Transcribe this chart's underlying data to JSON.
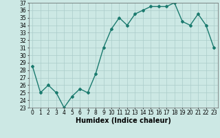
{
  "x": [
    0,
    1,
    2,
    3,
    4,
    5,
    6,
    7,
    8,
    9,
    10,
    11,
    12,
    13,
    14,
    15,
    16,
    17,
    18,
    19,
    20,
    21,
    22,
    23
  ],
  "y": [
    28.5,
    25.0,
    26.0,
    25.0,
    23.0,
    24.5,
    25.5,
    25.0,
    27.5,
    31.0,
    33.5,
    35.0,
    34.0,
    35.5,
    36.0,
    36.5,
    36.5,
    36.5,
    37.0,
    34.5,
    34.0,
    35.5,
    34.0,
    31.0
  ],
  "line_color": "#1a7a6e",
  "marker": "D",
  "marker_size": 2,
  "bg_color": "#cce8e4",
  "grid_color": "#aaccca",
  "xlabel": "Humidex (Indice chaleur)",
  "ylim": [
    23,
    37
  ],
  "xlim": [
    -0.5,
    23.5
  ],
  "yticks": [
    23,
    24,
    25,
    26,
    27,
    28,
    29,
    30,
    31,
    32,
    33,
    34,
    35,
    36,
    37
  ],
  "xticks": [
    0,
    1,
    2,
    3,
    4,
    5,
    6,
    7,
    8,
    9,
    10,
    11,
    12,
    13,
    14,
    15,
    16,
    17,
    18,
    19,
    20,
    21,
    22,
    23
  ],
  "tick_fontsize": 5.5,
  "xlabel_fontsize": 7,
  "linewidth": 1.0
}
